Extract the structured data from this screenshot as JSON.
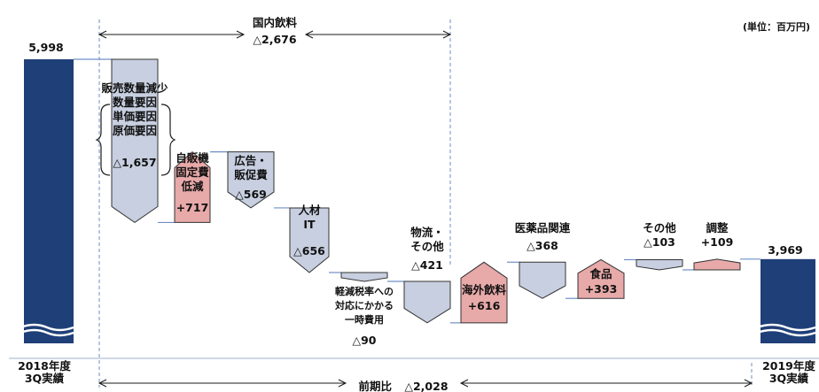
{
  "unit_label": "(単位：百万円)",
  "colors": {
    "total": "#1f3f78",
    "decrease": "#c7cfe0",
    "increase": "#e8a9a9",
    "stroke": "#333333",
    "connector": "#6f8fc6",
    "bracket": "#1a1a1a"
  },
  "top_bracket": {
    "label": "国内飲料",
    "value": "△2,676"
  },
  "bottom_bracket": {
    "label": "前期比",
    "value": "△2,028"
  },
  "chart_data": {
    "type": "waterfall",
    "title": "",
    "xlabel": "",
    "ylabel": "",
    "steps": [
      {
        "label": "2018年度\n3Q実績",
        "kind": "total",
        "value": 5998,
        "display": "5,998"
      },
      {
        "label": "販売数量減少\n数量要因\n単価要因\n原価要因",
        "kind": "decrease",
        "value": -1657,
        "display": "△1,657"
      },
      {
        "label": "自販機\n固定費\n低減",
        "kind": "increase",
        "value": 717,
        "display": "+717"
      },
      {
        "label": "広告・\n販促費",
        "kind": "decrease",
        "value": -569,
        "display": "△569"
      },
      {
        "label": "人材\nIT",
        "kind": "decrease",
        "value": -656,
        "display": "△656"
      },
      {
        "label": "軽減税率への\n対応にかかる\n一時費用",
        "kind": "decrease",
        "value": -90,
        "display": "△90"
      },
      {
        "label": "物流・\nその他",
        "kind": "decrease",
        "value": -421,
        "display": "△421"
      },
      {
        "label": "海外飲料",
        "kind": "increase",
        "value": 616,
        "display": "+616"
      },
      {
        "label": "医薬品関連",
        "kind": "decrease",
        "value": -368,
        "display": "△368"
      },
      {
        "label": "食品",
        "kind": "increase",
        "value": 393,
        "display": "+393"
      },
      {
        "label": "その他",
        "kind": "decrease",
        "value": -103,
        "display": "△103"
      },
      {
        "label": "調整",
        "kind": "increase",
        "value": 109,
        "display": "+109"
      },
      {
        "label": "2019年度\n3Q実績",
        "kind": "total",
        "value": 3969,
        "display": "3,969"
      }
    ]
  }
}
